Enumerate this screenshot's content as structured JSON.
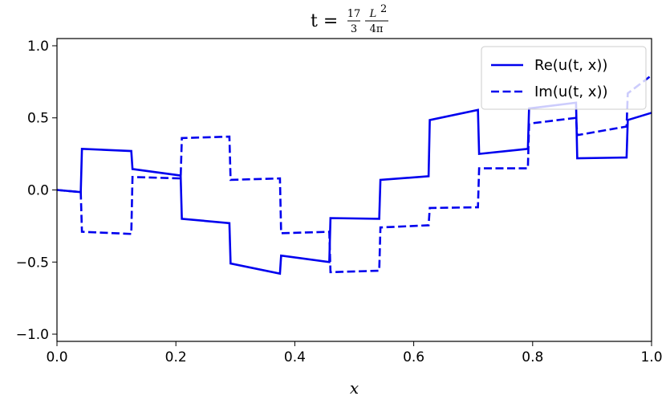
{
  "chart_data": {
    "type": "line",
    "title": {
      "prefix": "t = ",
      "frac1_num": "17",
      "frac1_den": "3",
      "frac2_num": "L",
      "frac2_exp": "2",
      "frac2_den": "4π"
    },
    "xlabel": "x",
    "ylabel": "",
    "xlim": [
      0.0,
      1.0
    ],
    "ylim": [
      -1.05,
      1.05
    ],
    "xticks": [
      0.0,
      0.2,
      0.4,
      0.6,
      0.8,
      1.0
    ],
    "xtick_labels": [
      "0.0",
      "0.2",
      "0.4",
      "0.6",
      "0.8",
      "1.0"
    ],
    "yticks": [
      -1.0,
      -0.5,
      0.0,
      0.5,
      1.0
    ],
    "ytick_labels": [
      "−1.0",
      "−0.5",
      "0.0",
      "0.5",
      "1.0"
    ],
    "grid": false,
    "legend_position": "top-right",
    "color": "#0000ee",
    "series": [
      {
        "name": "Re(u(t, x))",
        "style": "solid",
        "points": [
          [
            0.0,
            0.0
          ],
          [
            0.04,
            -0.015
          ],
          [
            0.042,
            0.285
          ],
          [
            0.125,
            0.27
          ],
          [
            0.127,
            0.145
          ],
          [
            0.208,
            0.1
          ],
          [
            0.21,
            -0.2
          ],
          [
            0.29,
            -0.23
          ],
          [
            0.292,
            -0.51
          ],
          [
            0.375,
            -0.58
          ],
          [
            0.377,
            -0.455
          ],
          [
            0.458,
            -0.5
          ],
          [
            0.46,
            -0.195
          ],
          [
            0.542,
            -0.2
          ],
          [
            0.544,
            0.07
          ],
          [
            0.625,
            0.095
          ],
          [
            0.627,
            0.485
          ],
          [
            0.708,
            0.555
          ],
          [
            0.71,
            0.25
          ],
          [
            0.792,
            0.285
          ],
          [
            0.794,
            0.565
          ],
          [
            0.873,
            0.605
          ],
          [
            0.875,
            0.22
          ],
          [
            0.958,
            0.225
          ],
          [
            0.96,
            0.485
          ],
          [
            1.0,
            0.535
          ]
        ]
      },
      {
        "name": "Im(u(t, x))",
        "style": "dashed",
        "points": [
          [
            0.0,
            0.0
          ],
          [
            0.04,
            -0.015
          ],
          [
            0.042,
            -0.29
          ],
          [
            0.125,
            -0.305
          ],
          [
            0.127,
            0.09
          ],
          [
            0.208,
            0.08
          ],
          [
            0.21,
            0.36
          ],
          [
            0.29,
            0.37
          ],
          [
            0.292,
            0.07
          ],
          [
            0.375,
            0.08
          ],
          [
            0.377,
            -0.3
          ],
          [
            0.458,
            -0.29
          ],
          [
            0.46,
            -0.57
          ],
          [
            0.542,
            -0.56
          ],
          [
            0.544,
            -0.26
          ],
          [
            0.625,
            -0.245
          ],
          [
            0.627,
            -0.125
          ],
          [
            0.708,
            -0.12
          ],
          [
            0.71,
            0.15
          ],
          [
            0.792,
            0.15
          ],
          [
            0.794,
            0.46
          ],
          [
            0.873,
            0.5
          ],
          [
            0.875,
            0.38
          ],
          [
            0.958,
            0.44
          ],
          [
            0.96,
            0.67
          ],
          [
            1.0,
            0.795
          ]
        ]
      }
    ]
  }
}
